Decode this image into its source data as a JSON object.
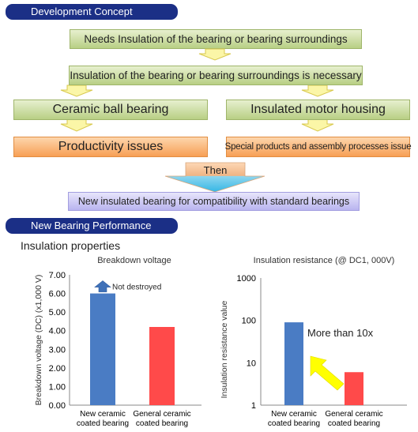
{
  "header1": "Development Concept",
  "flow": {
    "need": "Needs Insulation of the bearing or bearing surroundings",
    "necessary": "Insulation of the bearing or bearing surroundings is necessary",
    "left_option": "Ceramic ball bearing",
    "right_option": "Insulated motor housing",
    "left_issue": "Productivity issues",
    "right_issue": "Special products and assembly processes issue",
    "then": "Then",
    "result": "New insulated bearing for compatibility with standard bearings"
  },
  "header2": "New Bearing Performance",
  "section_title": "Insulation properties",
  "colors": {
    "header": "#1b2f86",
    "new_bar": "#4a7cc4",
    "general_bar": "#ff4a4a",
    "arrow_up": "#3f71b8",
    "arrow_yellow": "#ffff00"
  },
  "chart_data": [
    {
      "type": "bar",
      "title": "Breakdown voltage",
      "ylabel": "Breakdown voltage (DC) (x1,000 V)",
      "ylim": [
        0,
        7
      ],
      "yticks": [
        "0.00",
        "1.00",
        "2.00",
        "3.00",
        "4.00",
        "5.00",
        "6.00",
        "7.00"
      ],
      "categories": [
        [
          "New ceramic",
          "coated bearing"
        ],
        [
          "General ceramic",
          "coated bearing"
        ]
      ],
      "values": [
        6.0,
        4.2
      ],
      "annotation": "Not destroyed",
      "grid": false
    },
    {
      "type": "bar",
      "title": "Insulation resistance (@ DC1, 000V)",
      "ylabel": "Insulation resistance value",
      "scale": "log",
      "ylim": [
        1,
        1000
      ],
      "yticks": [
        "1",
        "10",
        "100",
        "1000"
      ],
      "categories": [
        [
          "New ceramic",
          "coated bearing"
        ],
        [
          "General ceramic",
          "coated bearing"
        ]
      ],
      "values": [
        90,
        6
      ],
      "annotation": "More than 10x",
      "grid": false
    }
  ]
}
